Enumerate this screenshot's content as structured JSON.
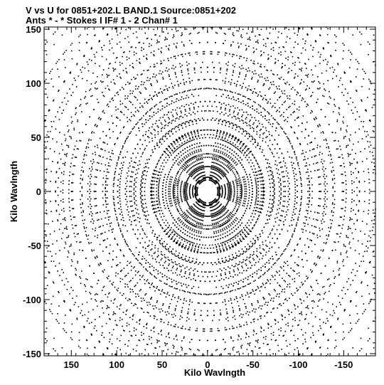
{
  "chart_data": {
    "type": "scatter",
    "title_line1": "V vs U for 0851+202.L BAND.1   Source:0851+202",
    "title_line2": "Ants * - *    Stokes I  IF# 1 - 2  Chan# 1",
    "xlabel": "Kilo Wavlngth",
    "ylabel": "Kilo Wavlngth",
    "xlim": [
      180,
      -185
    ],
    "ylim": [
      -152,
      152
    ],
    "x_reversed": true,
    "x_ticks": [
      150,
      100,
      50,
      0,
      -50,
      -100,
      -150
    ],
    "x_tick_labels": [
      "150",
      "100",
      "50",
      "0",
      "-50",
      "-100",
      "-150"
    ],
    "y_ticks": [
      -150,
      -100,
      -50,
      0,
      50,
      100,
      150
    ],
    "y_tick_labels": [
      "-150",
      "-100",
      "-50",
      "0",
      "50",
      "100",
      "150"
    ],
    "grid": false,
    "marker_color": "#000000",
    "sampling": {
      "arm_angles_deg": [
        0,
        60,
        120,
        180,
        240,
        300
      ],
      "arm_half_width_deg": 12,
      "station_radii": [
        0.5,
        1.2,
        2.0,
        3.0,
        4.2,
        5.6,
        7.2,
        9.0,
        11.0
      ],
      "scale_klambda": 16.5,
      "hour_angle_samples": 13,
      "hour_angle_span_deg": 40
    }
  }
}
